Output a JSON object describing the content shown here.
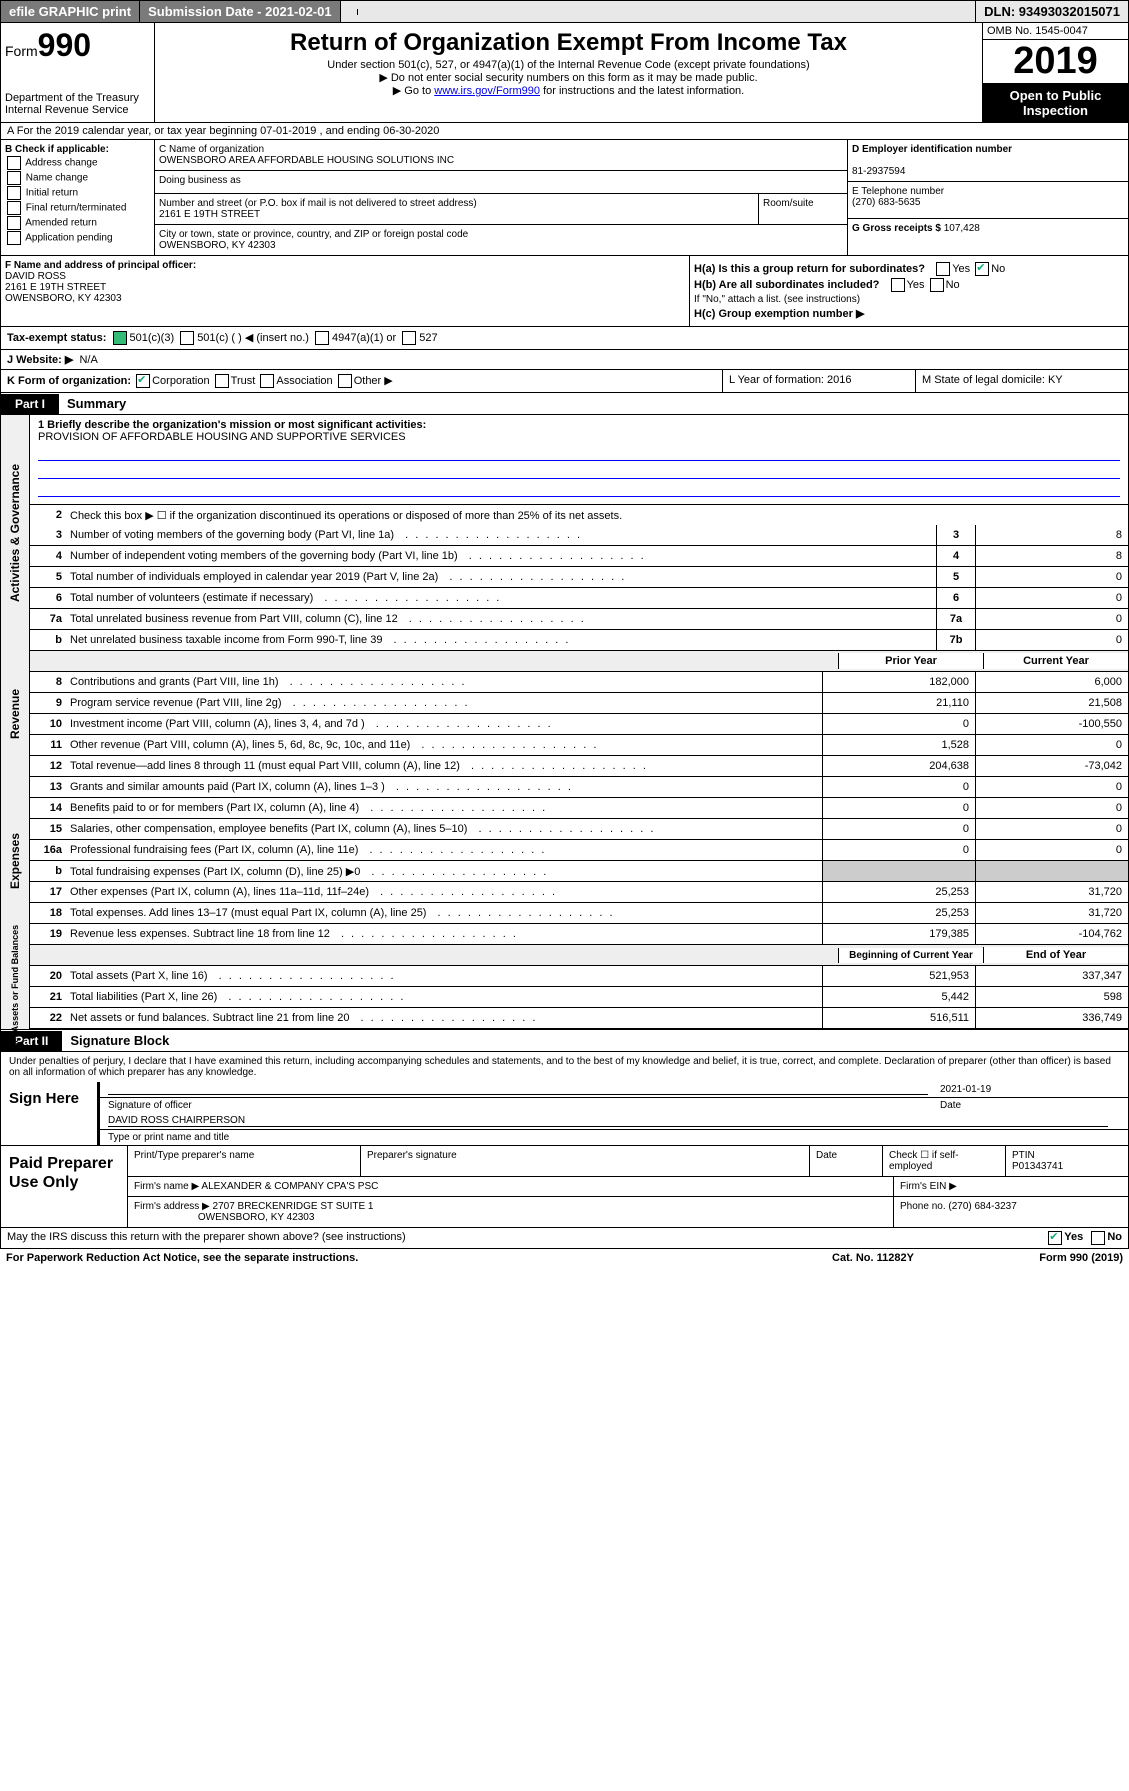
{
  "topbar": {
    "efile": "efile GRAPHIC print",
    "submission_label": "Submission Date - 2021-02-01",
    "dln_label": "DLN: 93493032015071"
  },
  "header": {
    "form_prefix": "Form",
    "form_number": "990",
    "dept1": "Department of the Treasury",
    "dept2": "Internal Revenue Service",
    "title": "Return of Organization Exempt From Income Tax",
    "subtitle": "Under section 501(c), 527, or 4947(a)(1) of the Internal Revenue Code (except private foundations)",
    "note1": "▶ Do not enter social security numbers on this form as it may be made public.",
    "note2_pre": "▶ Go to ",
    "note2_link": "www.irs.gov/Form990",
    "note2_post": " for instructions and the latest information.",
    "omb": "OMB No. 1545-0047",
    "year": "2019",
    "open_public": "Open to Public Inspection"
  },
  "rowA": "A For the 2019 calendar year, or tax year beginning 07-01-2019   , and ending 06-30-2020",
  "checkB": {
    "title": "B Check if applicable:",
    "items": [
      "Address change",
      "Name change",
      "Initial return",
      "Final return/terminated",
      "Amended return",
      "Application pending"
    ]
  },
  "boxC": {
    "name_label": "C Name of organization",
    "name": "OWENSBORO AREA AFFORDABLE HOUSING SOLUTIONS INC",
    "dba_label": "Doing business as",
    "dba": "",
    "addr_label": "Number and street (or P.O. box if mail is not delivered to street address)",
    "addr": "2161 E 19TH STREET",
    "room_label": "Room/suite",
    "city_label": "City or town, state or province, country, and ZIP or foreign postal code",
    "city": "OWENSBORO, KY  42303"
  },
  "boxD": {
    "label": "D Employer identification number",
    "value": "81-2937594"
  },
  "boxE": {
    "label": "E Telephone number",
    "value": "(270) 683-5635"
  },
  "boxG": {
    "label": "G Gross receipts $",
    "value": "107,428"
  },
  "boxF": {
    "label": "F  Name and address of principal officer:",
    "name": "DAVID ROSS",
    "addr1": "2161 E 19TH STREET",
    "addr2": "OWENSBORO, KY  42303"
  },
  "boxH": {
    "ha_label": "H(a)  Is this a group return for subordinates?",
    "hb_label": "H(b)  Are all subordinates included?",
    "hb_note": "If \"No,\" attach a list. (see instructions)",
    "hc_label": "H(c)  Group exemption number ▶",
    "yes": "Yes",
    "no": "No"
  },
  "rowI": {
    "label": "Tax-exempt status:",
    "opts": [
      "501(c)(3)",
      "501(c) (  ) ◀ (insert no.)",
      "4947(a)(1) or",
      "527"
    ]
  },
  "rowJ": {
    "label": "J  Website: ▶",
    "value": "N/A"
  },
  "rowK": {
    "label": "K Form of organization:",
    "opts": [
      "Corporation",
      "Trust",
      "Association",
      "Other ▶"
    ]
  },
  "rowL": {
    "label": "L Year of formation: 2016"
  },
  "rowM": {
    "label": "M State of legal domicile: KY"
  },
  "part1": {
    "hdr": "Part I",
    "title": "Summary"
  },
  "mission": {
    "q": "1  Briefly describe the organization's mission or most significant activities:",
    "a": "PROVISION OF AFFORDABLE HOUSING AND SUPPORTIVE SERVICES"
  },
  "lines_top": [
    {
      "n": "2",
      "d": "Check this box ▶ ☐  if the organization discontinued its operations or disposed of more than 25% of its net assets."
    },
    {
      "n": "3",
      "d": "Number of voting members of the governing body (Part VI, line 1a)",
      "c": "3",
      "v": "8"
    },
    {
      "n": "4",
      "d": "Number of independent voting members of the governing body (Part VI, line 1b)",
      "c": "4",
      "v": "8"
    },
    {
      "n": "5",
      "d": "Total number of individuals employed in calendar year 2019 (Part V, line 2a)",
      "c": "5",
      "v": "0"
    },
    {
      "n": "6",
      "d": "Total number of volunteers (estimate if necessary)",
      "c": "6",
      "v": "0"
    },
    {
      "n": "7a",
      "d": "Total unrelated business revenue from Part VIII, column (C), line 12",
      "c": "7a",
      "v": "0"
    },
    {
      "n": "b",
      "d": "Net unrelated business taxable income from Form 990-T, line 39",
      "c": "7b",
      "v": "0"
    }
  ],
  "col_headers": {
    "prior": "Prior Year",
    "current": "Current Year",
    "begin": "Beginning of Current Year",
    "end": "End of Year"
  },
  "revenue": [
    {
      "n": "8",
      "d": "Contributions and grants (Part VIII, line 1h)",
      "p": "182,000",
      "c": "6,000"
    },
    {
      "n": "9",
      "d": "Program service revenue (Part VIII, line 2g)",
      "p": "21,110",
      "c": "21,508"
    },
    {
      "n": "10",
      "d": "Investment income (Part VIII, column (A), lines 3, 4, and 7d )",
      "p": "0",
      "c": "-100,550"
    },
    {
      "n": "11",
      "d": "Other revenue (Part VIII, column (A), lines 5, 6d, 8c, 9c, 10c, and 11e)",
      "p": "1,528",
      "c": "0"
    },
    {
      "n": "12",
      "d": "Total revenue—add lines 8 through 11 (must equal Part VIII, column (A), line 12)",
      "p": "204,638",
      "c": "-73,042"
    }
  ],
  "expenses": [
    {
      "n": "13",
      "d": "Grants and similar amounts paid (Part IX, column (A), lines 1–3 )",
      "p": "0",
      "c": "0"
    },
    {
      "n": "14",
      "d": "Benefits paid to or for members (Part IX, column (A), line 4)",
      "p": "0",
      "c": "0"
    },
    {
      "n": "15",
      "d": "Salaries, other compensation, employee benefits (Part IX, column (A), lines 5–10)",
      "p": "0",
      "c": "0"
    },
    {
      "n": "16a",
      "d": "Professional fundraising fees (Part IX, column (A), line 11e)",
      "p": "0",
      "c": "0"
    },
    {
      "n": "b",
      "d": "Total fundraising expenses (Part IX, column (D), line 25) ▶0",
      "p": "",
      "c": "",
      "shade": true
    },
    {
      "n": "17",
      "d": "Other expenses (Part IX, column (A), lines 11a–11d, 11f–24e)",
      "p": "25,253",
      "c": "31,720"
    },
    {
      "n": "18",
      "d": "Total expenses. Add lines 13–17 (must equal Part IX, column (A), line 25)",
      "p": "25,253",
      "c": "31,720"
    },
    {
      "n": "19",
      "d": "Revenue less expenses. Subtract line 18 from line 12",
      "p": "179,385",
      "c": "-104,762"
    }
  ],
  "netassets": [
    {
      "n": "20",
      "d": "Total assets (Part X, line 16)",
      "p": "521,953",
      "c": "337,347"
    },
    {
      "n": "21",
      "d": "Total liabilities (Part X, line 26)",
      "p": "5,442",
      "c": "598"
    },
    {
      "n": "22",
      "d": "Net assets or fund balances. Subtract line 21 from line 20",
      "p": "516,511",
      "c": "336,749"
    }
  ],
  "side_labels": {
    "gov": "Activities & Governance",
    "rev": "Revenue",
    "exp": "Expenses",
    "net": "Net Assets or Fund Balances"
  },
  "part2": {
    "hdr": "Part II",
    "title": "Signature Block"
  },
  "sig": {
    "decl": "Under penalties of perjury, I declare that I have examined this return, including accompanying schedules and statements, and to the best of my knowledge and belief, it is true, correct, and complete. Declaration of preparer (other than officer) is based on all information of which preparer has any knowledge.",
    "sign_here": "Sign Here",
    "date": "2021-01-19",
    "sig_officer_label": "Signature of officer",
    "date_label": "Date",
    "name": "DAVID ROSS CHAIRPERSON",
    "name_label": "Type or print name and title"
  },
  "paid": {
    "title": "Paid Preparer Use Only",
    "h1": "Print/Type preparer's name",
    "h2": "Preparer's signature",
    "h3": "Date",
    "h4": "Check ☐ if self-employed",
    "h5": "PTIN",
    "ptin": "P01343741",
    "firm_label": "Firm's name    ▶",
    "firm": "ALEXANDER & COMPANY CPA'S PSC",
    "ein_label": "Firm's EIN ▶",
    "addr_label": "Firm's address ▶",
    "addr1": "2707 BRECKENRIDGE ST SUITE 1",
    "addr2": "OWENSBORO, KY  42303",
    "phone_label": "Phone no. (270) 684-3237"
  },
  "footer": {
    "discuss": "May the IRS discuss this return with the preparer shown above? (see instructions)",
    "yes": "Yes",
    "no": "No",
    "paperwork": "For Paperwork Reduction Act Notice, see the separate instructions.",
    "cat": "Cat. No. 11282Y",
    "form": "Form 990 (2019)"
  },
  "colors": {
    "link": "#0000ee",
    "chk": "#1a7f37"
  }
}
